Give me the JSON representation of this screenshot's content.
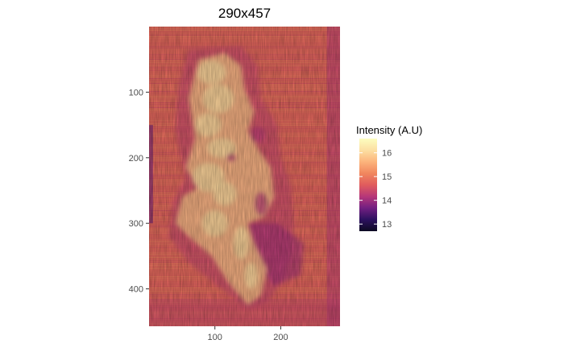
{
  "chart_data": {
    "type": "heatmap",
    "title": "290x457",
    "xlabel": "",
    "ylabel": "",
    "xlim": [
      0,
      290
    ],
    "ylim": [
      0,
      457
    ],
    "y_axis_reversed": true,
    "x_ticks": [
      100,
      200
    ],
    "y_ticks": [
      100,
      200,
      300,
      400
    ],
    "colormap": "magma",
    "legend": {
      "title": "Intensity (A.U)",
      "position": "right",
      "range": [
        12.7,
        16.6
      ],
      "ticks": [
        13,
        14,
        15,
        16
      ]
    },
    "background_intensity": 14.8,
    "bright_region_intensity": 16.1,
    "dark_region_intensity": 14.0,
    "grid": false
  },
  "colors": {
    "colormap_stops": [
      "#0d0a22",
      "#2c115f",
      "#721f81",
      "#b73779",
      "#e05c5d",
      "#f1875e",
      "#fcb47c",
      "#fcdfa2",
      "#fcfdbf"
    ]
  }
}
